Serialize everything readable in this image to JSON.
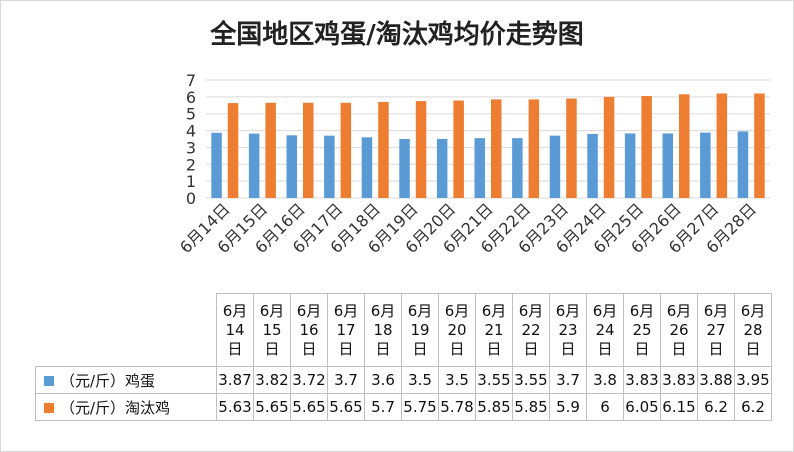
{
  "chart_data": {
    "type": "bar",
    "title": "全国地区鸡蛋/淘汰鸡均价走势图",
    "categories": [
      "6月14日",
      "6月15日",
      "6月16日",
      "6月17日",
      "6月18日",
      "6月19日",
      "6月20日",
      "6月21日",
      "6月22日",
      "6月23日",
      "6月24日",
      "6月25日",
      "6月26日",
      "6月27日",
      "6月28日"
    ],
    "y_ticks": [
      "0",
      "1",
      "2",
      "3",
      "4",
      "5",
      "6",
      "7"
    ],
    "ylim": [
      0,
      7
    ],
    "grid": true,
    "legend": "table-bottom",
    "series": [
      {
        "name": "（元/斤）鸡蛋",
        "color": "#5b9bd5",
        "values": [
          3.87,
          3.82,
          3.72,
          3.7,
          3.6,
          3.5,
          3.5,
          3.55,
          3.55,
          3.7,
          3.8,
          3.83,
          3.83,
          3.88,
          3.95
        ],
        "labels": [
          "3.87",
          "3.82",
          "3.72",
          "3.7",
          "3.6",
          "3.5",
          "3.5",
          "3.55",
          "3.55",
          "3.7",
          "3.8",
          "3.83",
          "3.83",
          "3.88",
          "3.95"
        ]
      },
      {
        "name": "（元/斤）淘汰鸡",
        "color": "#ed7d31",
        "values": [
          5.63,
          5.65,
          5.65,
          5.65,
          5.7,
          5.75,
          5.78,
          5.85,
          5.85,
          5.9,
          6,
          6.05,
          6.15,
          6.2,
          6.2
        ],
        "labels": [
          "5.63",
          "5.65",
          "5.65",
          "5.65",
          "5.7",
          "5.75",
          "5.78",
          "5.85",
          "5.85",
          "5.9",
          "6",
          "6.05",
          "6.15",
          "6.2",
          "6.2"
        ]
      }
    ],
    "table_header": [
      [
        "6月",
        "14",
        "日"
      ],
      [
        "6月",
        "15",
        "日"
      ],
      [
        "6月",
        "16",
        "日"
      ],
      [
        "6月",
        "17",
        "日"
      ],
      [
        "6月",
        "18",
        "日"
      ],
      [
        "6月",
        "19",
        "日"
      ],
      [
        "6月",
        "20",
        "日"
      ],
      [
        "6月",
        "21",
        "日"
      ],
      [
        "6月",
        "22",
        "日"
      ],
      [
        "6月",
        "23",
        "日"
      ],
      [
        "6月",
        "24",
        "日"
      ],
      [
        "6月",
        "25",
        "日"
      ],
      [
        "6月",
        "26",
        "日"
      ],
      [
        "6月",
        "27",
        "日"
      ],
      [
        "6月",
        "28",
        "日"
      ]
    ]
  }
}
